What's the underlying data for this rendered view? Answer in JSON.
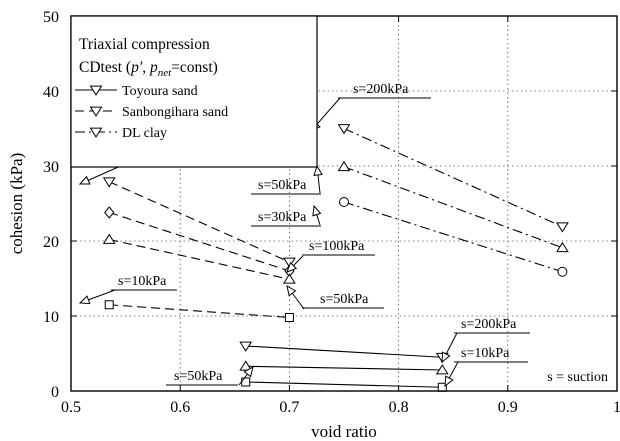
{
  "chart_data": {
    "type": "line",
    "xlabel": "void ratio",
    "ylabel": "cohesion (kPa)",
    "xlim": [
      0.5,
      1.0
    ],
    "ylim": [
      0,
      50
    ],
    "x_ticks": [
      0.5,
      0.6,
      0.7,
      0.8,
      0.9,
      1.0
    ],
    "x_tick_labels": [
      "0.5",
      "0.6",
      "0.7",
      "0.8",
      "0.9",
      "1"
    ],
    "y_ticks": [
      0,
      10,
      20,
      30,
      40,
      50
    ],
    "y_tick_labels": [
      "0",
      "10",
      "20",
      "30",
      "40",
      "50"
    ],
    "grid": "dotted",
    "legend": {
      "placement": "top-left",
      "title_line1": "Triaxial compression",
      "title_line2_prefix": "CDtest (",
      "title_p": "p′",
      "title_comma": ", ",
      "title_pnet": "p",
      "title_pnet_sub": "net",
      "title_line2_suffix": "=const)",
      "entries": [
        {
          "label": "Toyoura sand",
          "dash": "solid"
        },
        {
          "label": "Sanbongihara sand",
          "dash": "dashed"
        },
        {
          "label": "DL clay",
          "dash": "dashdot"
        }
      ]
    },
    "series": [
      {
        "material": "toyoura",
        "dash": "solid",
        "marker": "triangle",
        "points": [
          [
            0.66,
            6.0
          ],
          [
            0.84,
            4.5
          ]
        ]
      },
      {
        "material": "toyoura",
        "dash": "solid",
        "marker": "triangle-up",
        "points": [
          [
            0.66,
            3.3
          ],
          [
            0.84,
            2.8
          ]
        ]
      },
      {
        "material": "toyoura",
        "dash": "solid",
        "marker": "square",
        "points": [
          [
            0.66,
            1.2
          ],
          [
            0.84,
            0.5
          ]
        ]
      },
      {
        "material": "sanbongihara",
        "dash": "dashed",
        "marker": "triangle",
        "points": [
          [
            0.535,
            27.9
          ],
          [
            0.7,
            17.2
          ]
        ]
      },
      {
        "material": "sanbongihara",
        "dash": "dashed",
        "marker": "diamond",
        "points": [
          [
            0.535,
            23.8
          ],
          [
            0.7,
            16.0
          ]
        ]
      },
      {
        "material": "sanbongihara",
        "dash": "dashed",
        "marker": "triangle-up",
        "points": [
          [
            0.535,
            20.2
          ],
          [
            0.7,
            14.9
          ]
        ]
      },
      {
        "material": "sanbongihara",
        "dash": "dashed",
        "marker": "square",
        "points": [
          [
            0.535,
            11.5
          ],
          [
            0.7,
            9.8
          ]
        ]
      },
      {
        "material": "dlclay",
        "dash": "dashdot",
        "marker": "triangle",
        "points": [
          [
            0.75,
            35.0
          ],
          [
            0.95,
            21.9
          ]
        ]
      },
      {
        "material": "dlclay",
        "dash": "dashdot",
        "marker": "triangle-up",
        "points": [
          [
            0.75,
            29.9
          ],
          [
            0.95,
            19.1
          ]
        ]
      },
      {
        "material": "dlclay",
        "dash": "dashdot",
        "marker": "circle",
        "points": [
          [
            0.75,
            25.2
          ],
          [
            0.95,
            15.9
          ]
        ]
      }
    ],
    "annotations": [
      {
        "text": "s=200kPa",
        "x": 0.535,
        "y": 27.9
      },
      {
        "text": "s=100kPa",
        "x": 0.7,
        "y": 16.5
      },
      {
        "text": "s=50kPa",
        "x": 0.7,
        "y": 14.9
      },
      {
        "text": "s=10kPa",
        "x": 0.535,
        "y": 11.5
      },
      {
        "text": "s=200kPa",
        "x": 0.75,
        "y": 35.0
      },
      {
        "text": "s=50kPa",
        "x": 0.75,
        "y": 29.9
      },
      {
        "text": "s=30kPa",
        "x": 0.75,
        "y": 25.2
      },
      {
        "text": "s=200kPa",
        "x": 0.84,
        "y": 4.5
      },
      {
        "text": "s=10kPa",
        "x": 0.84,
        "y": 0.5
      },
      {
        "text": "s=50kPa",
        "x": 0.66,
        "y": 3.3
      }
    ],
    "footnote": "s = suction"
  }
}
